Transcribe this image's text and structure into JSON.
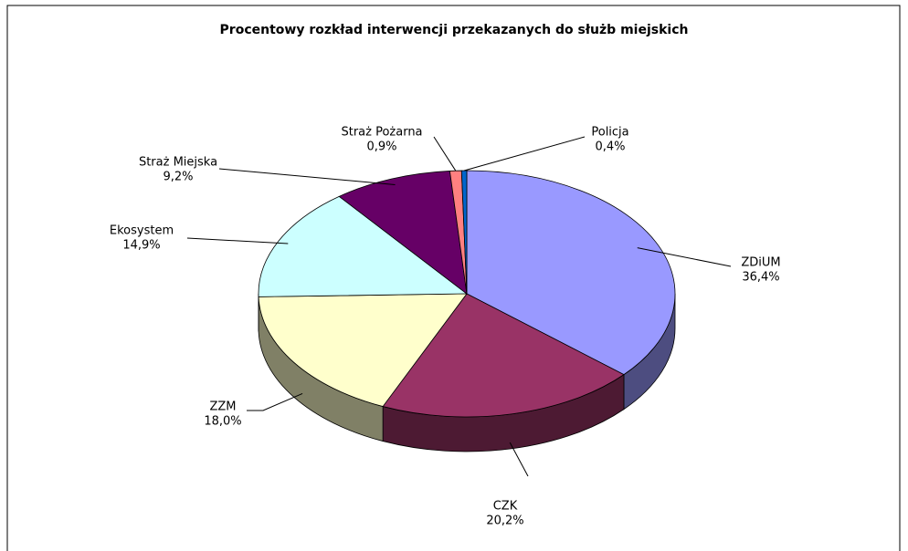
{
  "chart_data": {
    "type": "pie3d",
    "title": "Procentowy rozkład interwencji przekazanych do służb miejskich",
    "categories": [
      "ZDiUM",
      "CZK",
      "ZZM",
      "Ekosystem",
      "Straż Miejska",
      "Straż Pożarna",
      "Policja"
    ],
    "values": [
      36.4,
      20.2,
      18.0,
      14.9,
      9.2,
      0.9,
      0.4
    ],
    "value_labels": [
      "36,4%",
      "20,2%",
      "18,0%",
      "14,9%",
      "9,2%",
      "0,9%",
      "0,4%"
    ],
    "colors": [
      "#9999ff",
      "#993366",
      "#ffffcc",
      "#ccffff",
      "#660066",
      "#ff8080",
      "#0066cc"
    ]
  }
}
